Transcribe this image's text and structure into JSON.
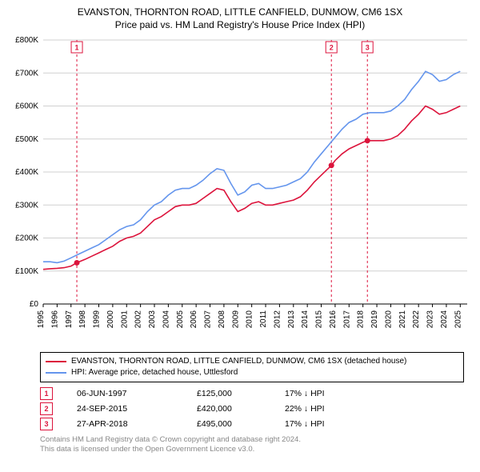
{
  "title_line1": "EVANSTON, THORNTON ROAD, LITTLE CANFIELD, DUNMOW, CM6 1SX",
  "title_line2": "Price paid vs. HM Land Registry's House Price Index (HPI)",
  "chart": {
    "type": "line",
    "background_color": "#ffffff",
    "grid_color": "#d0d0d0",
    "axis_color": "#000000",
    "ylim": [
      0,
      800000
    ],
    "ytick_step": 100000,
    "yticks": [
      "£0",
      "£100K",
      "£200K",
      "£300K",
      "£400K",
      "£500K",
      "£600K",
      "£700K",
      "£800K"
    ],
    "xlim": [
      1995,
      2025.5
    ],
    "xticks": [
      1995,
      1996,
      1997,
      1998,
      1999,
      2000,
      2001,
      2002,
      2003,
      2004,
      2005,
      2006,
      2007,
      2008,
      2009,
      2010,
      2011,
      2012,
      2013,
      2014,
      2015,
      2016,
      2017,
      2018,
      2019,
      2020,
      2021,
      2022,
      2023,
      2024,
      2025
    ],
    "label_fontsize": 10,
    "series": [
      {
        "name": "EVANSTON, THORNTON ROAD, LITTLE CANFIELD, DUNMOW, CM6 1SX (detached house)",
        "color": "#dc143c",
        "line_width": 1.6,
        "data": [
          [
            1995,
            105000
          ],
          [
            1995.5,
            107000
          ],
          [
            1996,
            108000
          ],
          [
            1996.5,
            110000
          ],
          [
            1997,
            115000
          ],
          [
            1997.42,
            125000
          ],
          [
            1998,
            135000
          ],
          [
            1998.5,
            145000
          ],
          [
            1999,
            155000
          ],
          [
            1999.5,
            165000
          ],
          [
            2000,
            175000
          ],
          [
            2000.5,
            190000
          ],
          [
            2001,
            200000
          ],
          [
            2001.5,
            205000
          ],
          [
            2002,
            215000
          ],
          [
            2002.5,
            235000
          ],
          [
            2003,
            255000
          ],
          [
            2003.5,
            265000
          ],
          [
            2004,
            280000
          ],
          [
            2004.5,
            295000
          ],
          [
            2005,
            300000
          ],
          [
            2005.5,
            300000
          ],
          [
            2006,
            305000
          ],
          [
            2006.5,
            320000
          ],
          [
            2007,
            335000
          ],
          [
            2007.5,
            350000
          ],
          [
            2008,
            345000
          ],
          [
            2008.5,
            310000
          ],
          [
            2009,
            280000
          ],
          [
            2009.5,
            290000
          ],
          [
            2010,
            305000
          ],
          [
            2010.5,
            310000
          ],
          [
            2011,
            300000
          ],
          [
            2011.5,
            300000
          ],
          [
            2012,
            305000
          ],
          [
            2012.5,
            310000
          ],
          [
            2013,
            315000
          ],
          [
            2013.5,
            325000
          ],
          [
            2014,
            345000
          ],
          [
            2014.5,
            370000
          ],
          [
            2015,
            390000
          ],
          [
            2015.73,
            420000
          ],
          [
            2016,
            435000
          ],
          [
            2016.5,
            455000
          ],
          [
            2017,
            470000
          ],
          [
            2017.5,
            480000
          ],
          [
            2018,
            490000
          ],
          [
            2018.32,
            495000
          ],
          [
            2018.5,
            495000
          ],
          [
            2019,
            495000
          ],
          [
            2019.5,
            495000
          ],
          [
            2020,
            500000
          ],
          [
            2020.5,
            510000
          ],
          [
            2021,
            530000
          ],
          [
            2021.5,
            555000
          ],
          [
            2022,
            575000
          ],
          [
            2022.5,
            600000
          ],
          [
            2023,
            590000
          ],
          [
            2023.5,
            575000
          ],
          [
            2024,
            580000
          ],
          [
            2024.5,
            590000
          ],
          [
            2025,
            600000
          ]
        ]
      },
      {
        "name": "HPI: Average price, detached house, Uttlesford",
        "color": "#6495ed",
        "line_width": 1.6,
        "data": [
          [
            1995,
            128000
          ],
          [
            1995.5,
            128000
          ],
          [
            1996,
            125000
          ],
          [
            1996.5,
            130000
          ],
          [
            1997,
            140000
          ],
          [
            1997.5,
            150000
          ],
          [
            1998,
            160000
          ],
          [
            1998.5,
            170000
          ],
          [
            1999,
            180000
          ],
          [
            1999.5,
            195000
          ],
          [
            2000,
            210000
          ],
          [
            2000.5,
            225000
          ],
          [
            2001,
            235000
          ],
          [
            2001.5,
            240000
          ],
          [
            2002,
            255000
          ],
          [
            2002.5,
            280000
          ],
          [
            2003,
            300000
          ],
          [
            2003.5,
            310000
          ],
          [
            2004,
            330000
          ],
          [
            2004.5,
            345000
          ],
          [
            2005,
            350000
          ],
          [
            2005.5,
            350000
          ],
          [
            2006,
            360000
          ],
          [
            2006.5,
            375000
          ],
          [
            2007,
            395000
          ],
          [
            2007.5,
            410000
          ],
          [
            2008,
            405000
          ],
          [
            2008.5,
            365000
          ],
          [
            2009,
            330000
          ],
          [
            2009.5,
            340000
          ],
          [
            2010,
            360000
          ],
          [
            2010.5,
            365000
          ],
          [
            2011,
            350000
          ],
          [
            2011.5,
            350000
          ],
          [
            2012,
            355000
          ],
          [
            2012.5,
            360000
          ],
          [
            2013,
            370000
          ],
          [
            2013.5,
            380000
          ],
          [
            2014,
            400000
          ],
          [
            2014.5,
            430000
          ],
          [
            2015,
            455000
          ],
          [
            2015.5,
            480000
          ],
          [
            2016,
            505000
          ],
          [
            2016.5,
            530000
          ],
          [
            2017,
            550000
          ],
          [
            2017.5,
            560000
          ],
          [
            2018,
            575000
          ],
          [
            2018.5,
            580000
          ],
          [
            2019,
            580000
          ],
          [
            2019.5,
            580000
          ],
          [
            2020,
            585000
          ],
          [
            2020.5,
            600000
          ],
          [
            2021,
            620000
          ],
          [
            2021.5,
            650000
          ],
          [
            2022,
            675000
          ],
          [
            2022.5,
            705000
          ],
          [
            2023,
            695000
          ],
          [
            2023.5,
            675000
          ],
          [
            2024,
            680000
          ],
          [
            2024.5,
            695000
          ],
          [
            2025,
            705000
          ]
        ]
      }
    ],
    "sale_markers": [
      {
        "n": "1",
        "x": 1997.42,
        "y": 125000,
        "color": "#dc143c"
      },
      {
        "n": "2",
        "x": 2015.73,
        "y": 420000,
        "color": "#dc143c"
      },
      {
        "n": "3",
        "x": 2018.32,
        "y": 495000,
        "color": "#dc143c"
      }
    ],
    "marker_line_color": "#dc143c",
    "marker_line_dash": "3,3"
  },
  "legend": {
    "items": [
      {
        "label": "EVANSTON, THORNTON ROAD, LITTLE CANFIELD, DUNMOW, CM6 1SX (detached house)",
        "color": "#dc143c"
      },
      {
        "label": "HPI: Average price, detached house, Uttlesford",
        "color": "#6495ed"
      }
    ]
  },
  "sales_table": [
    {
      "n": "1",
      "date": "06-JUN-1997",
      "price": "£125,000",
      "delta": "17% ↓ HPI"
    },
    {
      "n": "2",
      "date": "24-SEP-2015",
      "price": "£420,000",
      "delta": "22% ↓ HPI"
    },
    {
      "n": "3",
      "date": "27-APR-2018",
      "price": "£495,000",
      "delta": "17% ↓ HPI"
    }
  ],
  "footnote_line1": "Contains HM Land Registry data © Crown copyright and database right 2024.",
  "footnote_line2": "This data is licensed under the Open Government Licence v3.0.",
  "colors": {
    "marker_border": "#dc143c",
    "footnote_text": "#888888"
  }
}
